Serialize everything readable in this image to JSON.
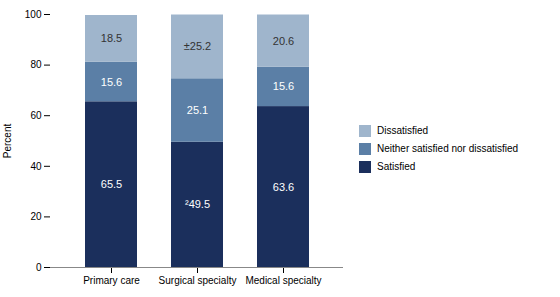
{
  "chart_data": {
    "type": "bar",
    "stacked": true,
    "categories": [
      "Primary care",
      "Surgical specialty",
      "Medical specialty"
    ],
    "series": [
      {
        "name": "Satisfied",
        "color": "#1b2f5c",
        "values": [
          65.5,
          49.5,
          63.6
        ],
        "value_labels": [
          "65.5",
          "²49.5",
          "63.6"
        ]
      },
      {
        "name": "Neither satisfied nor dissatisfied",
        "color": "#5b7fa6",
        "values": [
          15.6,
          25.1,
          15.6
        ]
      },
      {
        "name": "Dissatisfied",
        "color": "#9fb5cc",
        "values": [
          18.5,
          25.2,
          20.6
        ],
        "value_labels": [
          "18.5",
          "±25.2",
          "20.6"
        ]
      }
    ],
    "ylabel": "Percent",
    "ylim": [
      0,
      100
    ],
    "yticks": [
      0,
      20,
      40,
      60,
      80,
      100
    ],
    "grid": false,
    "legend": "right",
    "data_labels": true
  }
}
